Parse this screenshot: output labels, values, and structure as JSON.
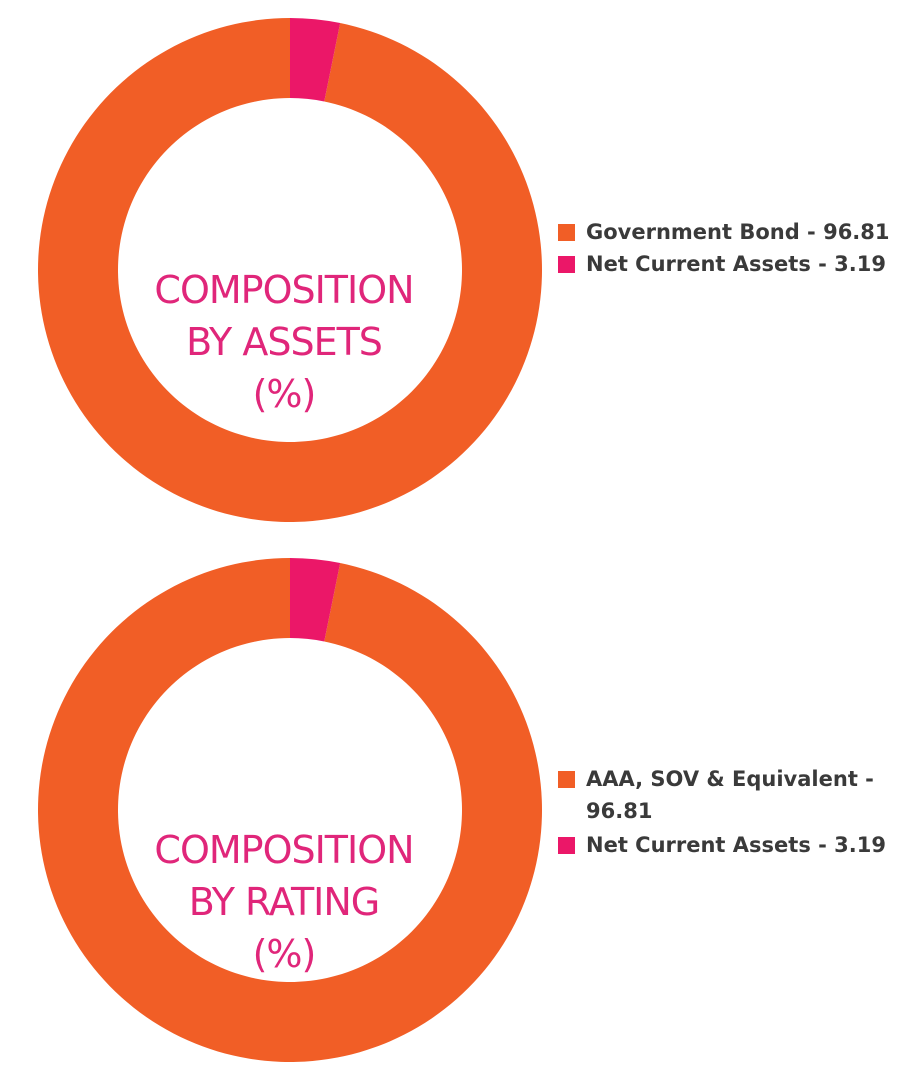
{
  "colors": {
    "primary": "#F15E26",
    "secondary": "#EB1768",
    "label": "#E0267A",
    "legend_text": "#3a3a3a"
  },
  "chart_data": [
    {
      "type": "pie",
      "style": "donut",
      "center_label": [
        "COMPOSITION",
        "BY ASSETS",
        "(%)"
      ],
      "slices": [
        {
          "name": "Government Bond",
          "value": 96.81,
          "legend": "Government Bond - 96.81",
          "color": "#F15E26"
        },
        {
          "name": "Net Current Assets",
          "value": 3.19,
          "legend": "Net Current Assets - 3.19",
          "color": "#EB1768"
        }
      ],
      "legend_placement": "right"
    },
    {
      "type": "pie",
      "style": "donut",
      "center_label": [
        "COMPOSITION",
        "BY RATING",
        "(%)"
      ],
      "slices": [
        {
          "name": "AAA, SOV & Equivalent",
          "value": 96.81,
          "legend": "AAA, SOV & Equivalent - 96.81",
          "color": "#F15E26"
        },
        {
          "name": "Net Current Assets",
          "value": 3.19,
          "legend": "Net Current Assets - 3.19",
          "color": "#EB1768"
        }
      ],
      "legend_placement": "right"
    }
  ]
}
